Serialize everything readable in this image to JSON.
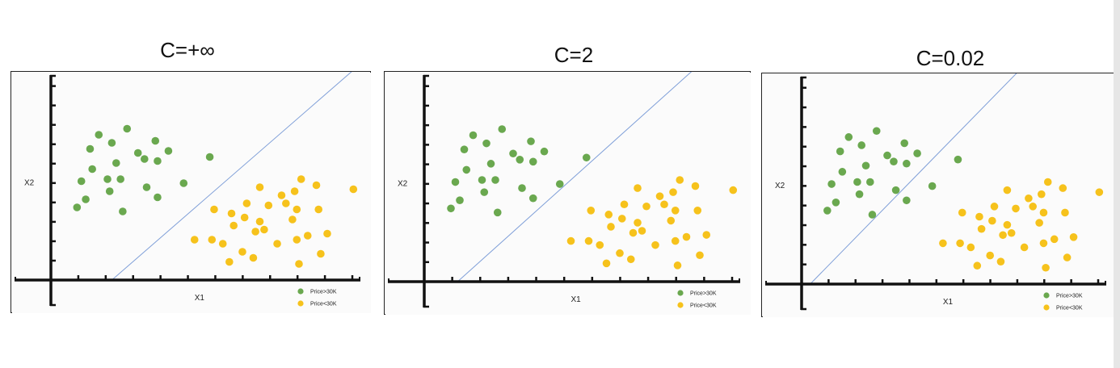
{
  "chart_data": [
    {
      "type": "scatter",
      "title": "C=+∞",
      "xlabel": "X1",
      "ylabel": "X2",
      "legend": {
        "placement": "bottom-right",
        "entries": [
          "Price>30K",
          "Price<30K"
        ]
      },
      "colors": {
        "Price>30K": "#6aa84f",
        "Price<30K": "#f6c21c",
        "boundary": "#7f9fd8",
        "axis": "#111111",
        "background": "#fbfbfb"
      },
      "xlim": [
        0,
        14
      ],
      "ylim": [
        0,
        10
      ],
      "series": [
        {
          "name": "Price>30K",
          "points": [
            [
              1.2,
              3.6
            ],
            [
              1.6,
              4.0
            ],
            [
              1.4,
              4.9
            ],
            [
              1.9,
              5.5
            ],
            [
              1.8,
              6.5
            ],
            [
              2.2,
              7.2
            ],
            [
              2.8,
              6.8
            ],
            [
              2.6,
              5.0
            ],
            [
              3.0,
              5.8
            ],
            [
              3.2,
              5.0
            ],
            [
              2.7,
              4.4
            ],
            [
              3.3,
              3.4
            ],
            [
              3.5,
              7.5
            ],
            [
              4.0,
              6.3
            ],
            [
              4.3,
              6.0
            ],
            [
              4.8,
              6.9
            ],
            [
              4.9,
              5.9
            ],
            [
              5.4,
              6.4
            ],
            [
              4.4,
              4.6
            ],
            [
              4.9,
              4.1
            ],
            [
              6.1,
              4.8
            ],
            [
              7.3,
              6.1
            ]
          ]
        },
        {
          "name": "Price<30K",
          "points": [
            [
              6.6,
              2.0
            ],
            [
              7.4,
              2.0
            ],
            [
              7.5,
              3.5
            ],
            [
              8.3,
              3.3
            ],
            [
              7.9,
              1.8
            ],
            [
              8.4,
              2.7
            ],
            [
              8.9,
              3.1
            ],
            [
              8.8,
              1.4
            ],
            [
              8.2,
              0.9
            ],
            [
              9.3,
              1.1
            ],
            [
              9.4,
              2.4
            ],
            [
              9.6,
              2.9
            ],
            [
              9.8,
              2.5
            ],
            [
              10.4,
              1.8
            ],
            [
              10.0,
              3.7
            ],
            [
              9.6,
              4.6
            ],
            [
              9.0,
              3.8
            ],
            [
              10.8,
              3.8
            ],
            [
              11.3,
              3.5
            ],
            [
              11.1,
              3.0
            ],
            [
              11.3,
              2.0
            ],
            [
              11.8,
              2.2
            ],
            [
              10.6,
              4.2
            ],
            [
              11.2,
              4.4
            ],
            [
              11.5,
              5.0
            ],
            [
              12.2,
              4.7
            ],
            [
              12.3,
              3.5
            ],
            [
              11.4,
              0.8
            ],
            [
              12.4,
              1.3
            ],
            [
              12.7,
              2.3
            ],
            [
              13.9,
              4.5
            ]
          ]
        }
      ],
      "boundary": {
        "from": [
          2.8,
          0
        ],
        "to": [
          14,
          10.5
        ]
      }
    },
    {
      "type": "scatter",
      "title": "C=2",
      "xlabel": "X1",
      "ylabel": "X2",
      "legend": {
        "placement": "bottom-right",
        "entries": [
          "Price>30K",
          "Price<30K"
        ]
      },
      "colors": {
        "Price>30K": "#6aa84f",
        "Price<30K": "#f6c21c",
        "boundary": "#7f9fd8",
        "axis": "#111111",
        "background": "#fbfbfb"
      },
      "xlim": [
        0,
        14
      ],
      "ylim": [
        0,
        10
      ],
      "series": [
        {
          "name": "Price>30K",
          "points": [
            [
              1.2,
              3.6
            ],
            [
              1.6,
              4.0
            ],
            [
              1.4,
              4.9
            ],
            [
              1.9,
              5.5
            ],
            [
              1.8,
              6.5
            ],
            [
              2.2,
              7.2
            ],
            [
              2.8,
              6.8
            ],
            [
              2.6,
              5.0
            ],
            [
              3.0,
              5.8
            ],
            [
              3.2,
              5.0
            ],
            [
              2.7,
              4.4
            ],
            [
              3.3,
              3.4
            ],
            [
              3.5,
              7.5
            ],
            [
              4.0,
              6.3
            ],
            [
              4.3,
              6.0
            ],
            [
              4.8,
              6.9
            ],
            [
              4.9,
              5.9
            ],
            [
              5.4,
              6.4
            ],
            [
              4.4,
              4.6
            ],
            [
              4.9,
              4.1
            ],
            [
              6.1,
              4.8
            ],
            [
              7.3,
              6.1
            ]
          ]
        },
        {
          "name": "Price<30K",
          "points": [
            [
              6.6,
              2.0
            ],
            [
              7.4,
              2.0
            ],
            [
              7.5,
              3.5
            ],
            [
              8.3,
              3.3
            ],
            [
              7.9,
              1.8
            ],
            [
              8.4,
              2.7
            ],
            [
              8.9,
              3.1
            ],
            [
              8.8,
              1.4
            ],
            [
              8.2,
              0.9
            ],
            [
              9.3,
              1.1
            ],
            [
              9.4,
              2.4
            ],
            [
              9.6,
              2.9
            ],
            [
              9.8,
              2.5
            ],
            [
              10.4,
              1.8
            ],
            [
              10.0,
              3.7
            ],
            [
              9.6,
              4.6
            ],
            [
              9.0,
              3.8
            ],
            [
              10.8,
              3.8
            ],
            [
              11.3,
              3.5
            ],
            [
              11.1,
              3.0
            ],
            [
              11.3,
              2.0
            ],
            [
              11.8,
              2.2
            ],
            [
              10.6,
              4.2
            ],
            [
              11.2,
              4.4
            ],
            [
              11.5,
              5.0
            ],
            [
              12.2,
              4.7
            ],
            [
              12.3,
              3.5
            ],
            [
              11.4,
              0.8
            ],
            [
              12.4,
              1.3
            ],
            [
              12.7,
              2.3
            ],
            [
              13.9,
              4.5
            ]
          ]
        }
      ],
      "boundary": {
        "from": [
          1.5,
          0
        ],
        "to": [
          12.2,
          10.5
        ]
      }
    },
    {
      "type": "scatter",
      "title": "C=0.02",
      "xlabel": "X1",
      "ylabel": "X2",
      "legend": {
        "placement": "bottom-right",
        "entries": [
          "Price>30K",
          "Price<30K"
        ]
      },
      "colors": {
        "Price>30K": "#6aa84f",
        "Price<30K": "#f6c21c",
        "boundary": "#7f9fd8",
        "axis": "#111111",
        "background": "#fbfbfb"
      },
      "xlim": [
        0,
        14
      ],
      "ylim": [
        0,
        10
      ],
      "series": [
        {
          "name": "Price>30K",
          "points": [
            [
              1.2,
              3.6
            ],
            [
              1.6,
              4.0
            ],
            [
              1.4,
              4.9
            ],
            [
              1.9,
              5.5
            ],
            [
              1.8,
              6.5
            ],
            [
              2.2,
              7.2
            ],
            [
              2.8,
              6.8
            ],
            [
              2.6,
              5.0
            ],
            [
              3.0,
              5.8
            ],
            [
              3.2,
              5.0
            ],
            [
              2.7,
              4.4
            ],
            [
              3.3,
              3.4
            ],
            [
              3.5,
              7.5
            ],
            [
              4.0,
              6.3
            ],
            [
              4.3,
              6.0
            ],
            [
              4.8,
              6.9
            ],
            [
              4.9,
              5.9
            ],
            [
              5.4,
              6.4
            ],
            [
              4.4,
              4.6
            ],
            [
              4.9,
              4.1
            ],
            [
              6.1,
              4.8
            ],
            [
              7.3,
              6.1
            ]
          ]
        },
        {
          "name": "Price<30K",
          "points": [
            [
              6.6,
              2.0
            ],
            [
              7.4,
              2.0
            ],
            [
              7.5,
              3.5
            ],
            [
              8.3,
              3.3
            ],
            [
              7.9,
              1.8
            ],
            [
              8.4,
              2.7
            ],
            [
              8.9,
              3.1
            ],
            [
              8.8,
              1.4
            ],
            [
              8.2,
              0.9
            ],
            [
              9.3,
              1.1
            ],
            [
              9.4,
              2.4
            ],
            [
              9.6,
              2.9
            ],
            [
              9.8,
              2.5
            ],
            [
              10.4,
              1.8
            ],
            [
              10.0,
              3.7
            ],
            [
              9.6,
              4.6
            ],
            [
              9.0,
              3.8
            ],
            [
              10.8,
              3.8
            ],
            [
              11.3,
              3.5
            ],
            [
              11.1,
              3.0
            ],
            [
              11.3,
              2.0
            ],
            [
              11.8,
              2.2
            ],
            [
              10.6,
              4.2
            ],
            [
              11.2,
              4.4
            ],
            [
              11.5,
              5.0
            ],
            [
              12.2,
              4.7
            ],
            [
              12.3,
              3.5
            ],
            [
              11.4,
              0.8
            ],
            [
              12.4,
              1.3
            ],
            [
              12.7,
              2.3
            ],
            [
              13.9,
              4.5
            ]
          ]
        }
      ],
      "boundary": {
        "from": [
          0.4,
          0
        ],
        "to": [
          10.2,
          10.5
        ]
      }
    }
  ]
}
